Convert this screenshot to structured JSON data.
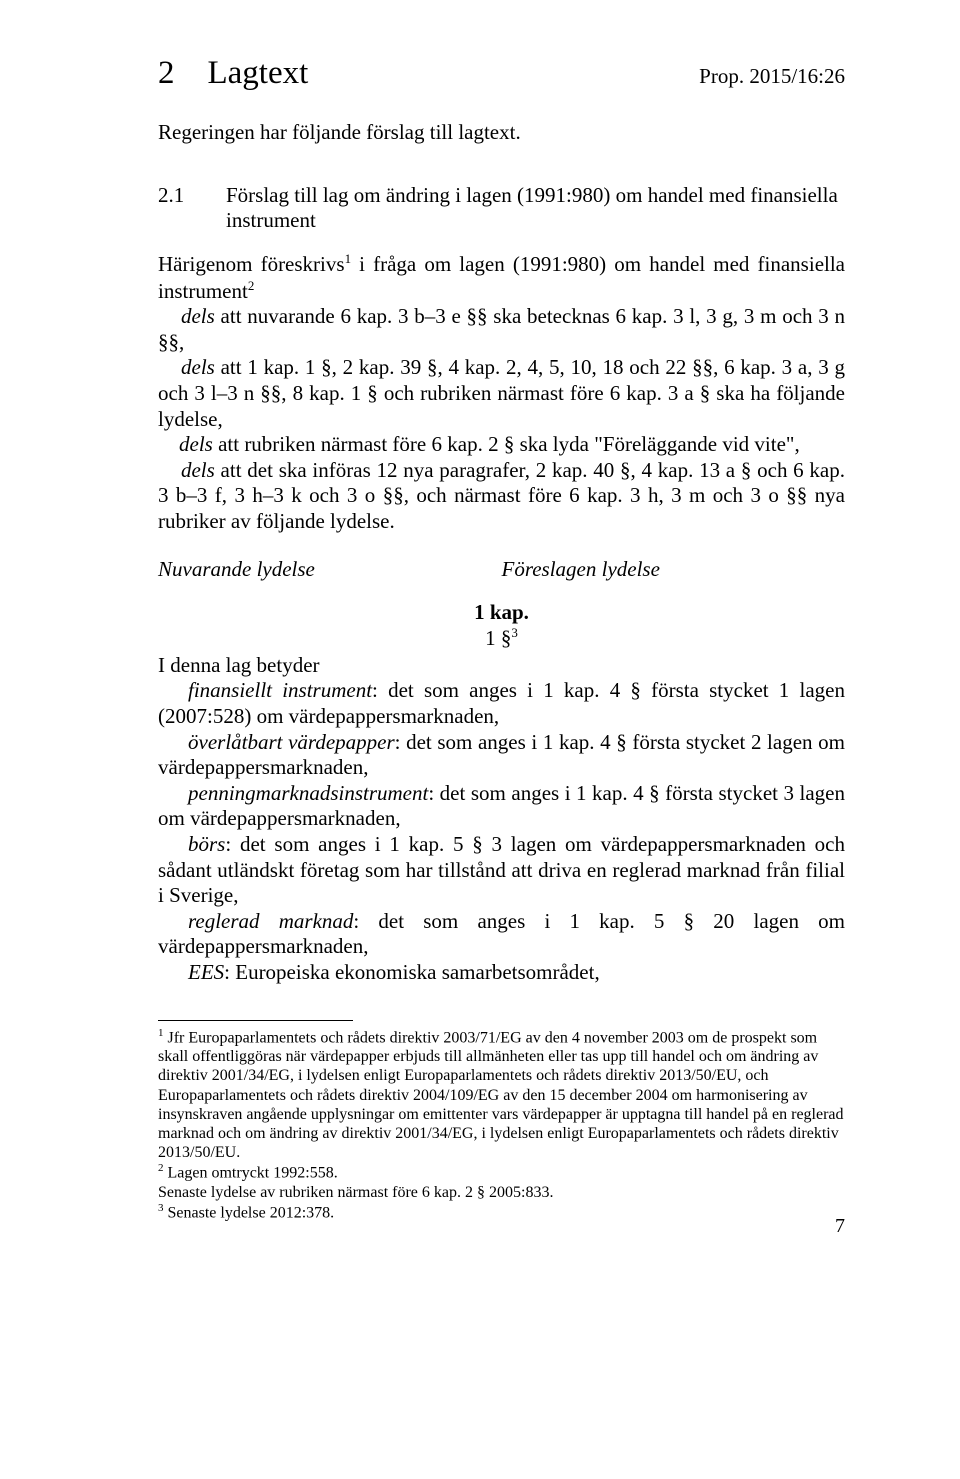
{
  "header": {
    "section_num": "2",
    "section_title": "Lagtext",
    "prop": "Prop. 2015/16:26"
  },
  "intro": "Regeringen har följande förslag till lagtext.",
  "sub": {
    "num": "2.1",
    "title": "Förslag till lag om ändring i lagen (1991:980) om handel med finansiella instrument"
  },
  "para": {
    "p1a": "Härigenom föreskrivs",
    "fn1": "1",
    "p1b": " i fråga om lagen (1991:980) om handel med finansiella instrument",
    "fn2": "2",
    "d1": "dels",
    "p2": " att nuvarande 6 kap. 3 b–3 e §§ ska betecknas 6 kap. 3 l, 3 g, 3 m och 3 n §§,",
    "p3": " att 1 kap. 1 §, 2 kap. 39 §, 4 kap. 2, 4, 5, 10, 18 och 22 §§, 6 kap. 3 a, 3 g och 3 l–3 n §§, 8 kap. 1 § och rubriken närmast före 6 kap. 3 a § ska ha följande lydelse,",
    "p4a": " att rubriken närmast före 6 kap. 2 § ska lyda \"Föreläggande vid vite\",",
    "p5": " att det ska införas 12 nya paragrafer, 2 kap. 40 §, 4 kap. 13 a § och 6 kap. 3 b–3 f, 3 h–3 k och 3 o §§, och närmast före 6 kap. 3 h, 3 m och 3 o §§ nya rubriker av följande lydelse."
  },
  "lyd": {
    "nuv": "Nuvarande lydelse",
    "for": "Föreslagen lydelse"
  },
  "kap": {
    "title": "1 kap.",
    "sec": "1 §",
    "fn3": "3"
  },
  "def": {
    "intro": "I denna lag betyder",
    "fi_label": "finansiellt instrument",
    "fi_text": ": det som anges i 1 kap. 4 § första stycket 1 lagen (2007:528) om värdepappersmarknaden,",
    "ov_label": "överlåtbart värdepapper",
    "ov_text": ": det som anges i 1 kap. 4 § första stycket 2 lagen om värdepappersmarknaden,",
    "pm_label": "penningmarknadsinstrument",
    "pm_text": ": det som anges i 1 kap. 4 § första stycket 3 lagen om värdepappersmarknaden,",
    "bo_label": "börs",
    "bo_text": ": det som anges i 1 kap. 5 § 3 lagen om värdepappersmarknaden och sådant utländskt företag som har tillstånd att driva en reglerad marknad från filial i Sverige,",
    "rm_label": "reglerad marknad",
    "rm_text": ": det som anges i 1 kap. 5 § 20 lagen om värdepappersmarknaden,",
    "ees_label": "EES",
    "ees_text": ": Europeiska ekonomiska samarbetsområdet,"
  },
  "foot": {
    "f1": "Jfr Europaparlamentets och rådets direktiv 2003/71/EG av den 4 november 2003 om de prospekt som skall offentliggöras när värdepapper erbjuds till allmänheten eller tas upp till handel och om ändring av direktiv 2001/34/EG, i lydelsen enligt Europaparlamentets och rådets direktiv 2013/50/EU, och Europaparlamentets och rådets direktiv 2004/109/EG av den 15 december 2004 om harmonisering av insynskraven angående upplysningar om emittenter vars värdepapper är upptagna till handel på en reglerad marknad och om ändring av direktiv 2001/34/EG, i lydelsen enligt Europaparlamentets och rådets direktiv 2013/50/EU.",
    "f2": "Lagen omtryckt 1992:558.",
    "f2b": "Senaste lydelse av rubriken närmast före 6 kap. 2 § 2005:833.",
    "f3": "Senaste lydelse 2012:378."
  },
  "pagenum": "7"
}
